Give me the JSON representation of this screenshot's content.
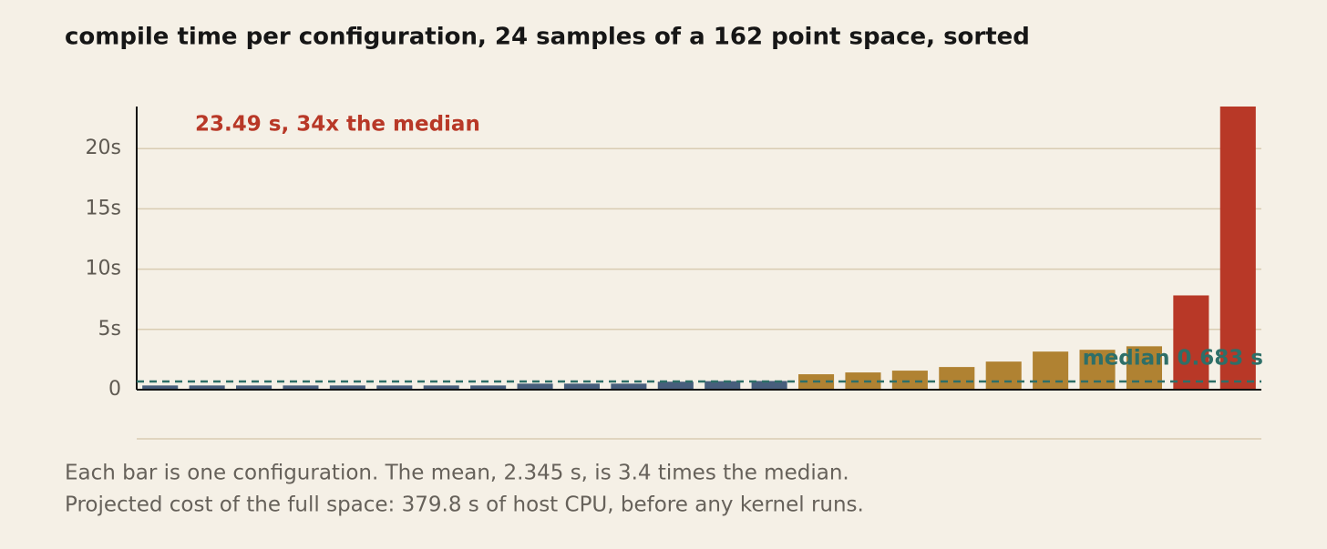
{
  "chart_data": {
    "type": "bar",
    "title": "compile time per configuration, 24 samples of a 162 point space, sorted",
    "values": [
      0.35,
      0.35,
      0.35,
      0.35,
      0.35,
      0.35,
      0.35,
      0.35,
      0.5,
      0.5,
      0.5,
      0.66,
      0.706,
      0.72,
      1.28,
      1.43,
      1.58,
      1.88,
      2.33,
      3.16,
      3.31,
      3.6,
      7.82,
      23.49
    ],
    "colors": [
      "#475e7c",
      "#475e7c",
      "#475e7c",
      "#475e7c",
      "#475e7c",
      "#475e7c",
      "#475e7c",
      "#475e7c",
      "#475e7c",
      "#475e7c",
      "#475e7c",
      "#475e7c",
      "#475e7c",
      "#475e7c",
      "#b08232",
      "#b08232",
      "#b08232",
      "#b08232",
      "#b08232",
      "#b08232",
      "#b08232",
      "#b08232",
      "#b83827",
      "#b83827"
    ],
    "ylim": [
      0,
      23.49
    ],
    "yticks": [
      0,
      {
        "value": 5,
        "label": "5s"
      },
      {
        "value": 10,
        "label": "10s"
      },
      {
        "value": 15,
        "label": "15s"
      },
      {
        "value": 20,
        "label": "20s"
      }
    ],
    "grid": true,
    "median": 0.683,
    "median_label": "median 0.683 s",
    "median_color": "#2e6f68",
    "annotation": "23.49 s, 34x the median",
    "notes": [
      "Each bar is one configuration. The mean, 2.345 s, is 3.4 times the median.",
      "Projected cost of the full space: 379.8 s of host CPU, before any kernel runs."
    ]
  }
}
